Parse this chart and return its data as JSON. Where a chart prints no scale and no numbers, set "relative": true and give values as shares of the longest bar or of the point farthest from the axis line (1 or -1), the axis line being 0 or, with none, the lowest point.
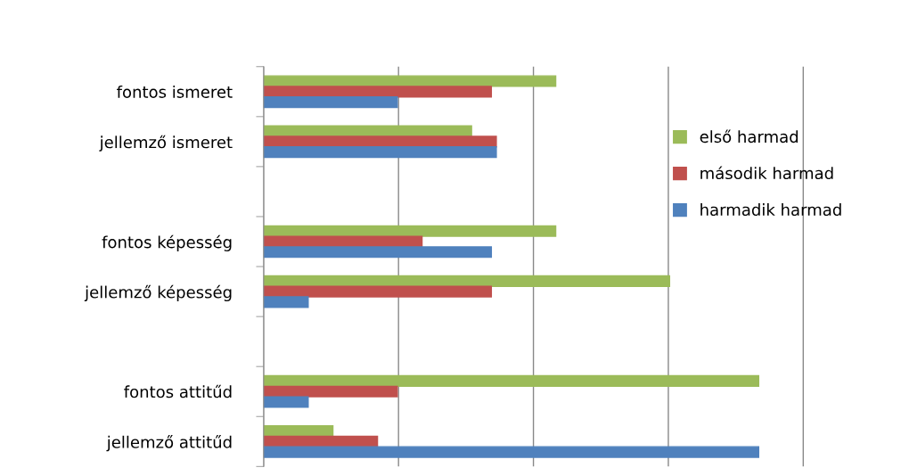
{
  "chart_data": {
    "type": "bar",
    "orientation": "horizontal",
    "relative": true,
    "grid": "x",
    "legend": "right",
    "categories": [
      "fontos ismeret",
      "jellemző ismeret",
      null,
      "fontos képesség",
      "jellemző képesség",
      null,
      "fontos attitűd",
      "jellemző attitűd"
    ],
    "series": [
      {
        "name": "első harmad",
        "color": "#9bbb59",
        "values": [
          0.59,
          0.42,
          null,
          0.59,
          0.82,
          null,
          1,
          0.14
        ]
      },
      {
        "name": "második harmad",
        "color": "#c0504d",
        "values": [
          0.46,
          0.47,
          null,
          0.32,
          0.46,
          null,
          0.27,
          0.23
        ]
      },
      {
        "name": "harmadik harmad",
        "color": "#4f81bd",
        "values": [
          0.27,
          0.47,
          null,
          0.46,
          0.09,
          null,
          0.09,
          1
        ]
      }
    ]
  }
}
